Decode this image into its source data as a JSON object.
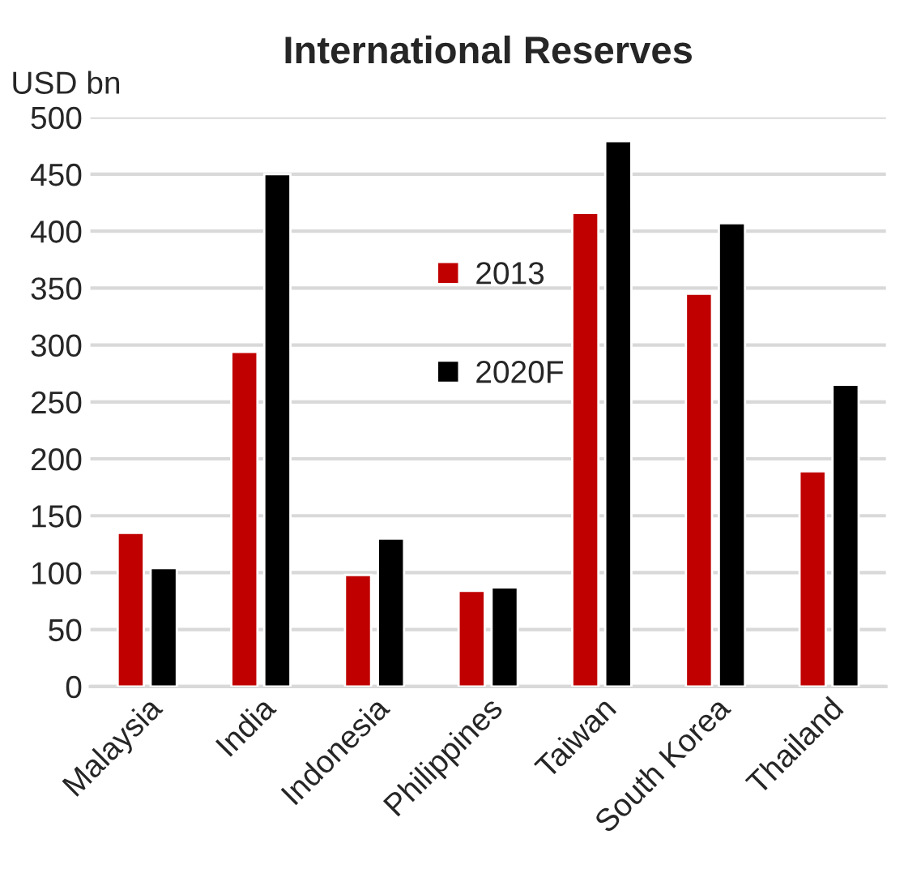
{
  "chart_data": {
    "type": "bar",
    "title": "International Reserves",
    "ylabel": "USD bn",
    "categories": [
      "Malaysia",
      "India",
      "Indonesia",
      "Philippines",
      "Taiwan",
      "South Korea",
      "Thailand"
    ],
    "series": [
      {
        "name": "2013",
        "color": "#c00000",
        "values": [
          135,
          294,
          98,
          84,
          416,
          345,
          189
        ]
      },
      {
        "name": "2020F",
        "color": "#000000",
        "values": [
          104,
          450,
          130,
          87,
          479,
          407,
          265
        ]
      }
    ],
    "ylim": [
      0,
      500
    ],
    "yticks": [
      0,
      50,
      100,
      150,
      200,
      250,
      300,
      350,
      400,
      450,
      500
    ],
    "grid": "y",
    "legend": "center"
  }
}
